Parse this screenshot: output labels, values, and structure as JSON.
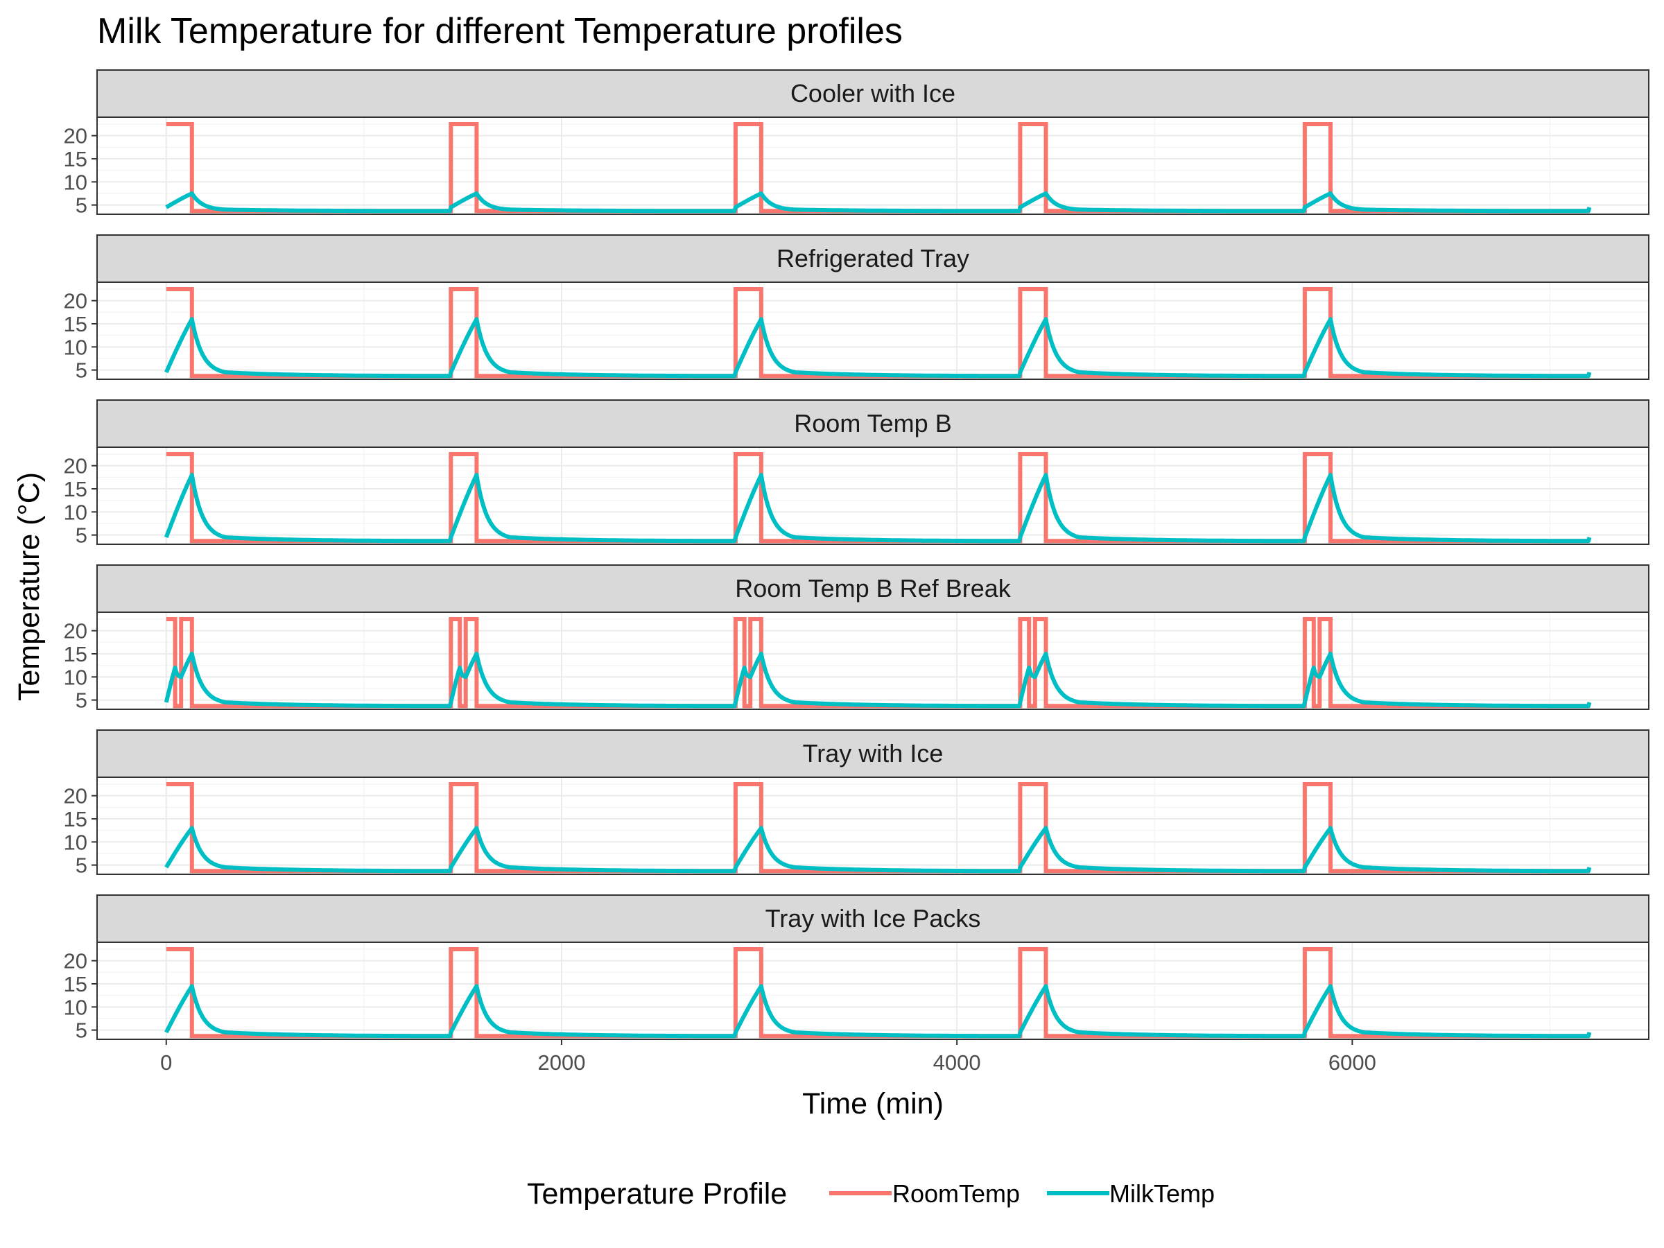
{
  "chart_data": {
    "type": "line",
    "title": "Milk Temperature for different Temperature profiles",
    "xlabel": "Time (min)",
    "ylabel": "Temperature (°C)",
    "xlim": [
      -350,
      7500
    ],
    "x_ticks": [
      0,
      2000,
      4000,
      6000
    ],
    "ylim": [
      3,
      24
    ],
    "y_ticks": [
      5,
      10,
      15,
      20
    ],
    "grid": true,
    "legend": {
      "title": "Temperature Profile",
      "position": "bottom",
      "entries": [
        {
          "name": "RoomTemp",
          "color": "#F8766D"
        },
        {
          "name": "MilkTemp",
          "color": "#00BFC4"
        }
      ]
    },
    "period_min": 1440,
    "cycles": 5,
    "end_min": 7200,
    "room_warm_temp": 22.5,
    "room_cold_temp": 3.7,
    "milk_base_temp": 3.7,
    "panels": [
      {
        "name": "Cooler with Ice",
        "room_warm_intervals": [
          [
            0,
            130
          ]
        ],
        "milk_key_points": [
          [
            0,
            4.5
          ],
          [
            130,
            7.5
          ],
          [
            300,
            4.0
          ],
          [
            1440,
            3.7
          ]
        ]
      },
      {
        "name": "Refrigerated Tray",
        "room_warm_intervals": [
          [
            0,
            130
          ]
        ],
        "milk_key_points": [
          [
            0,
            4.5
          ],
          [
            130,
            16.0
          ],
          [
            300,
            4.5
          ],
          [
            1440,
            3.7
          ]
        ]
      },
      {
        "name": "Room Temp B",
        "room_warm_intervals": [
          [
            0,
            130
          ]
        ],
        "milk_key_points": [
          [
            0,
            4.5
          ],
          [
            130,
            18.0
          ],
          [
            300,
            4.5
          ],
          [
            1440,
            3.7
          ]
        ]
      },
      {
        "name": "Room Temp B Ref Break",
        "room_warm_intervals": [
          [
            0,
            45
          ],
          [
            75,
            130
          ]
        ],
        "milk_key_points": [
          [
            0,
            4.5
          ],
          [
            45,
            12.0
          ],
          [
            75,
            10.0
          ],
          [
            130,
            15.0
          ],
          [
            300,
            4.5
          ],
          [
            1440,
            3.7
          ]
        ]
      },
      {
        "name": "Tray with Ice",
        "room_warm_intervals": [
          [
            0,
            130
          ]
        ],
        "milk_key_points": [
          [
            0,
            4.5
          ],
          [
            130,
            13.0
          ],
          [
            300,
            4.5
          ],
          [
            1440,
            3.7
          ]
        ]
      },
      {
        "name": "Tray with Ice Packs",
        "room_warm_intervals": [
          [
            0,
            130
          ]
        ],
        "milk_key_points": [
          [
            0,
            4.5
          ],
          [
            130,
            14.5
          ],
          [
            300,
            4.5
          ],
          [
            1440,
            3.7
          ]
        ]
      }
    ]
  }
}
